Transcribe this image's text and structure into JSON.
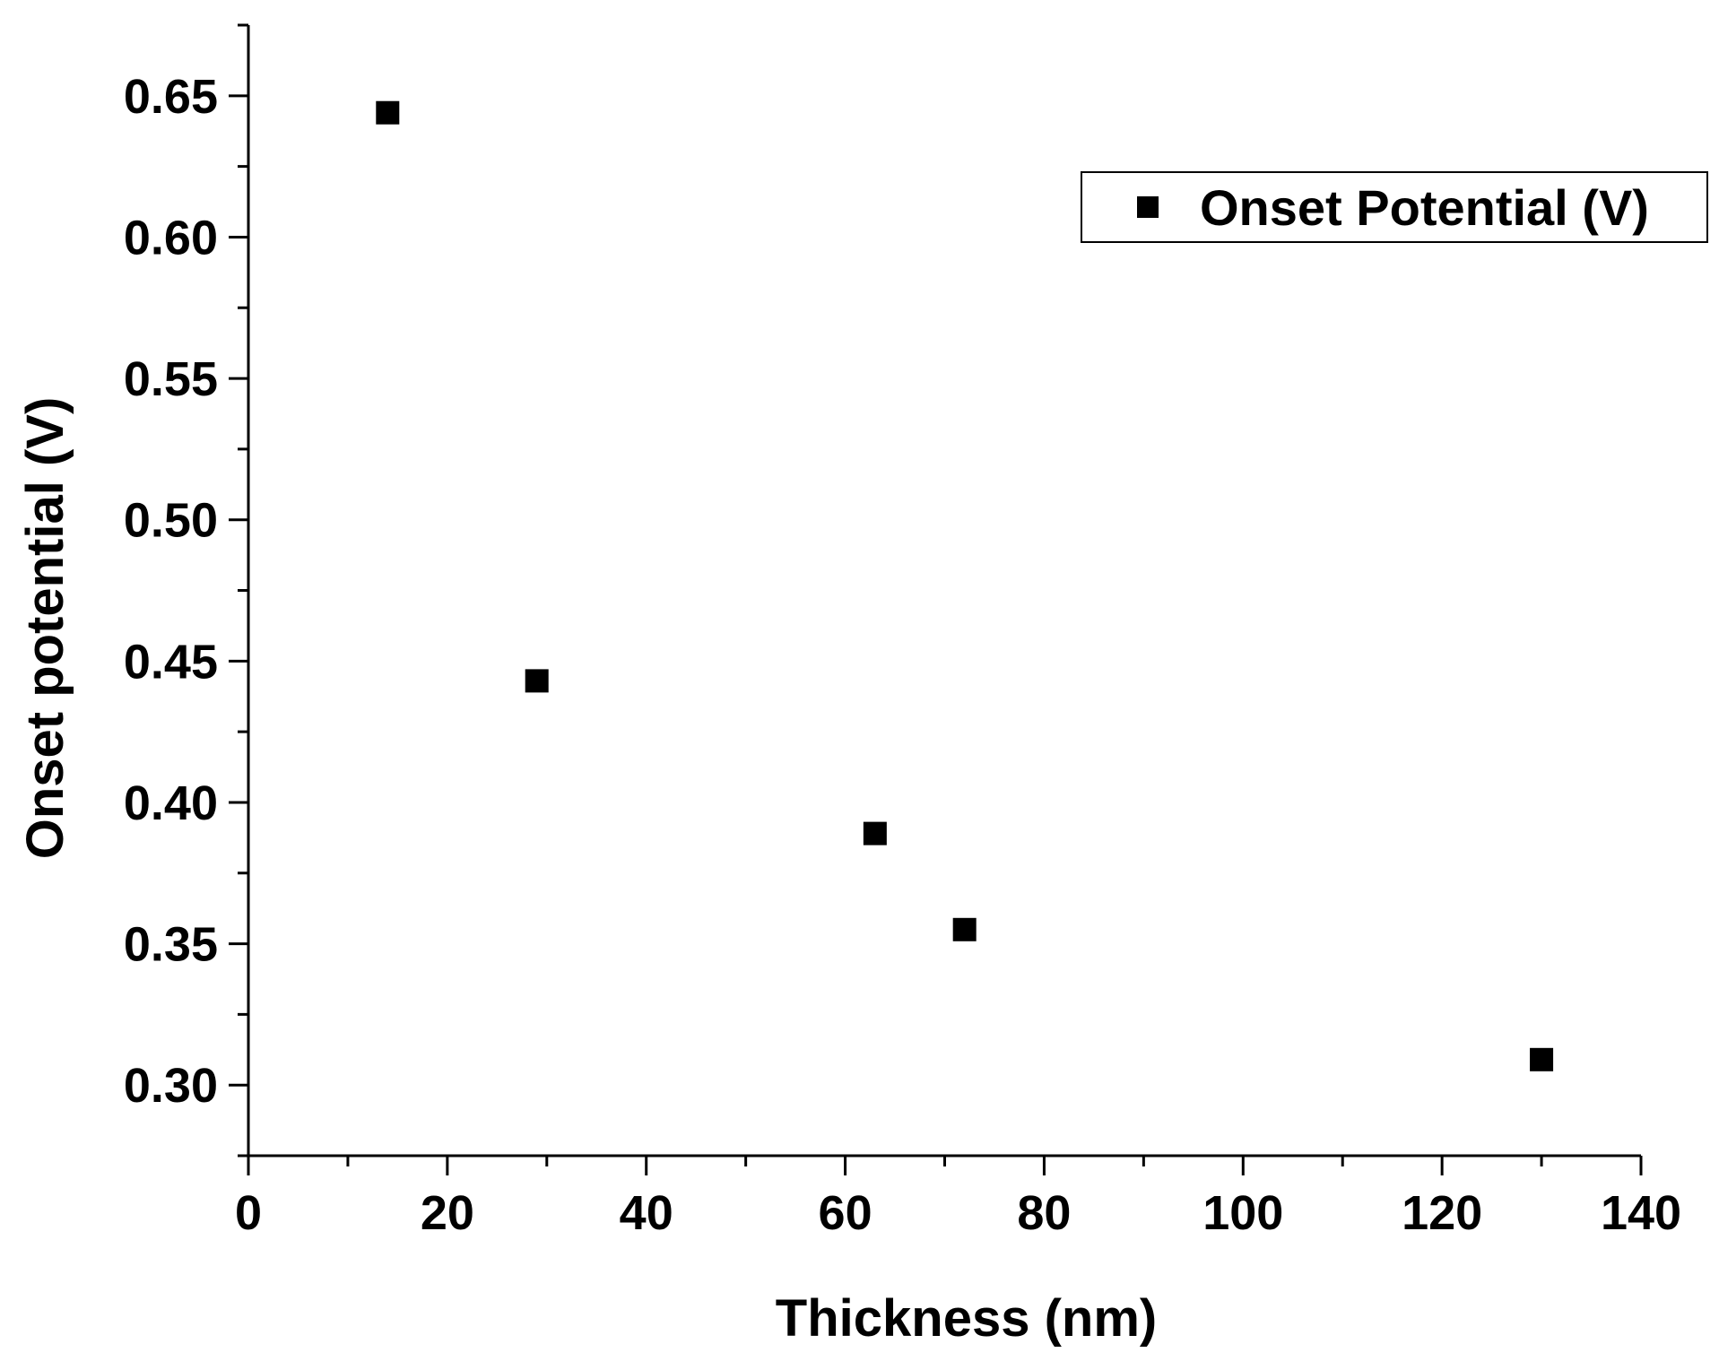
{
  "chart_data": {
    "type": "scatter",
    "title": "",
    "xlabel": "Thickness (nm)",
    "ylabel": "Onset potential (V)",
    "xlim": [
      0,
      140
    ],
    "ylim": [
      0.275,
      0.675
    ],
    "xticks": [
      0,
      20,
      40,
      60,
      80,
      100,
      120,
      140
    ],
    "xtick_labels": [
      "0",
      "20",
      "40",
      "60",
      "80",
      "100",
      "120",
      "140"
    ],
    "yticks": [
      0.3,
      0.35,
      0.4,
      0.45,
      0.5,
      0.55,
      0.6,
      0.65
    ],
    "ytick_labels": [
      "0.30",
      "0.35",
      "0.40",
      "0.45",
      "0.50",
      "0.55",
      "0.60",
      "0.65"
    ],
    "grid": false,
    "legend_position": "top-right",
    "series": [
      {
        "name": "Onset Potential (V)",
        "marker": "square",
        "color": "#000000",
        "x": [
          14,
          29,
          63,
          72,
          130
        ],
        "y": [
          0.644,
          0.443,
          0.389,
          0.355,
          0.309
        ]
      }
    ]
  }
}
